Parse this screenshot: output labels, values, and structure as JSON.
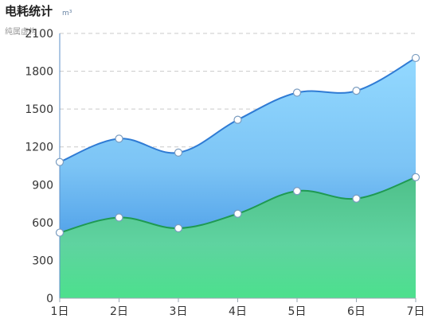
{
  "header": {
    "title": "电耗统计",
    "subtitle": "纯属虚构",
    "unit": "m³"
  },
  "chart_data": {
    "type": "area",
    "categories": [
      "1日",
      "2日",
      "3日",
      "4日",
      "5日",
      "6日",
      "7日"
    ],
    "series": [
      {
        "values": [
          1080,
          1265,
          1155,
          1415,
          1630,
          1645,
          1905
        ],
        "color": "#2f7bd4"
      },
      {
        "values": [
          520,
          640,
          555,
          670,
          850,
          790,
          960
        ],
        "color": "#1f9a52"
      }
    ],
    "ylim": [
      0,
      2100
    ],
    "yticks": [
      0,
      300,
      600,
      900,
      1200,
      1500,
      1800,
      2100
    ],
    "grid": true,
    "smooth": true
  }
}
